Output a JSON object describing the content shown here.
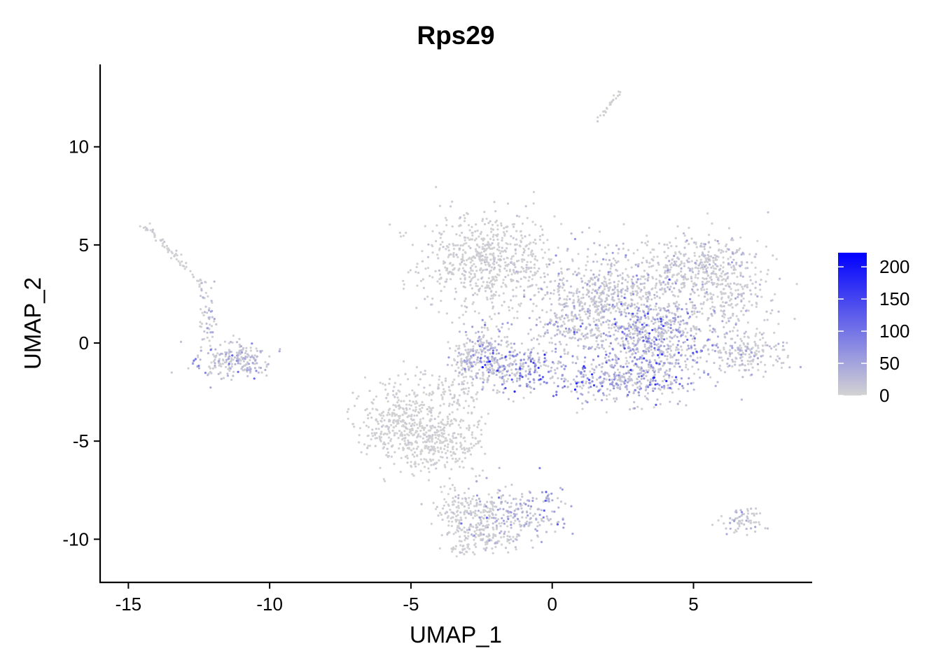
{
  "chart_data": {
    "type": "scatter",
    "title": "Rps29",
    "xlabel": "UMAP_1",
    "ylabel": "UMAP_2",
    "xlim": [
      -16,
      9.2
    ],
    "ylim": [
      -12.2,
      14.2
    ],
    "xticks": [
      -15,
      -10,
      -5,
      0,
      5
    ],
    "xtick_labels": [
      "-15",
      "-10",
      "-5",
      "0",
      "5"
    ],
    "yticks": [
      -10,
      -5,
      0,
      5,
      10
    ],
    "ytick_labels": [
      "-10",
      "-5",
      "0",
      "5",
      "10"
    ],
    "grid": false,
    "legend_position": "right",
    "color_scale": {
      "low_color": "#d3d3d3",
      "high_color": "#0000ff",
      "min": 0,
      "max": 222,
      "ticks": [
        0,
        50,
        100,
        150,
        200
      ],
      "tick_labels": [
        "0",
        "50",
        "100",
        "150",
        "200"
      ]
    },
    "clusters": [
      {
        "cx": -2.3,
        "cy": 4.2,
        "sx": 1.2,
        "sy": 1.25,
        "n": 650,
        "expr": 6
      },
      {
        "cx": 2.4,
        "cy": 2.6,
        "sx": 1.5,
        "sy": 1.2,
        "n": 550,
        "expr": 22
      },
      {
        "cx": 3.6,
        "cy": 0.2,
        "sx": 1.3,
        "sy": 1.0,
        "n": 600,
        "expr": 45
      },
      {
        "cx": 2.4,
        "cy": -1.9,
        "sx": 1.3,
        "sy": 0.55,
        "n": 360,
        "expr": 55
      },
      {
        "cx": 6.3,
        "cy": 2.7,
        "sx": 0.9,
        "sy": 1.3,
        "n": 300,
        "expr": 14
      },
      {
        "cx": 7.0,
        "cy": -0.6,
        "sx": 0.65,
        "sy": 0.45,
        "n": 150,
        "expr": 20
      },
      {
        "cx": 5.0,
        "cy": 4.0,
        "sx": 0.9,
        "sy": 0.8,
        "n": 220,
        "expr": 15
      },
      {
        "cx": -2.4,
        "cy": -0.4,
        "sx": 0.45,
        "sy": 0.9,
        "n": 180,
        "expr": 35
      },
      {
        "cx": -1.3,
        "cy": -1.3,
        "sx": 0.75,
        "sy": 0.6,
        "n": 240,
        "expr": 55
      },
      {
        "cx": -3.1,
        "cy": -0.9,
        "sx": 0.3,
        "sy": 0.5,
        "n": 60,
        "expr": 12
      },
      {
        "cx": -5.4,
        "cy": -3.9,
        "sx": 0.75,
        "sy": 1.0,
        "n": 320,
        "expr": 4
      },
      {
        "cx": -4.1,
        "cy": -5.0,
        "sx": 0.85,
        "sy": 0.8,
        "n": 320,
        "expr": 3
      },
      {
        "cx": -3.5,
        "cy": -2.4,
        "sx": 0.5,
        "sy": 0.5,
        "n": 70,
        "expr": 4
      },
      {
        "cx": -1.2,
        "cy": -8.6,
        "sx": 0.9,
        "sy": 0.7,
        "n": 220,
        "expr": 40
      },
      {
        "cx": -2.9,
        "cy": -8.8,
        "sx": 0.6,
        "sy": 0.6,
        "n": 160,
        "expr": 8
      },
      {
        "cx": -2.1,
        "cy": -9.9,
        "sx": 0.6,
        "sy": 0.35,
        "n": 80,
        "expr": 18
      },
      {
        "cx": -3.2,
        "cy": -10.5,
        "sx": 0.25,
        "sy": 0.15,
        "n": 30,
        "expr": 5
      },
      {
        "cx": -11.5,
        "cy": -0.8,
        "sx": 0.6,
        "sy": 0.45,
        "n": 170,
        "expr": 32
      },
      {
        "cx": -10.6,
        "cy": -1.0,
        "sx": 0.3,
        "sy": 0.3,
        "n": 45,
        "expr": 28
      },
      {
        "cx": -12.2,
        "cy": 1.3,
        "sx": 0.18,
        "sy": 0.7,
        "n": 50,
        "expr": 18
      },
      {
        "cx": 6.8,
        "cy": -9.1,
        "sx": 0.4,
        "sy": 0.35,
        "n": 70,
        "expr": 22
      },
      {
        "cx": 1.5,
        "cy": 2.3,
        "sx": 0.7,
        "sy": 0.6,
        "n": 120,
        "expr": 10
      },
      {
        "cx": 0.5,
        "cy": 0.7,
        "sx": 0.6,
        "sy": 0.6,
        "n": 120,
        "expr": 25
      }
    ],
    "trails": [
      {
        "from": [
          -14.4,
          6.0
        ],
        "to": [
          -12.3,
          2.9
        ],
        "n": 60,
        "spread": 0.08,
        "expr": 5
      },
      {
        "from": [
          1.6,
          11.4
        ],
        "to": [
          2.4,
          12.8
        ],
        "n": 22,
        "spread": 0.05,
        "expr": 3
      },
      {
        "from": [
          -3.7,
          -7.2
        ],
        "to": [
          -3.4,
          -10.4
        ],
        "n": 30,
        "spread": 0.2,
        "expr": 4
      }
    ]
  }
}
